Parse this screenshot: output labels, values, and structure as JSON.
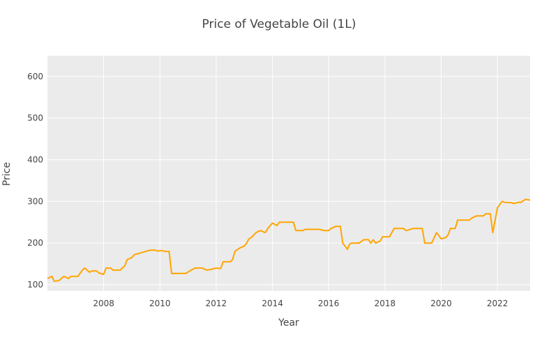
{
  "chart_data": {
    "type": "line",
    "title": "Price of Vegetable Oil (1L)",
    "xlabel": "Year",
    "ylabel": "Price",
    "xlim": [
      "2006-01-01",
      "2023-03-01"
    ],
    "ylim": [
      85,
      650
    ],
    "grid": true,
    "line_color": "#ffa500",
    "plot_bg": "#ebebeb",
    "xticks": [
      "2008",
      "2010",
      "2012",
      "2014",
      "2016",
      "2018",
      "2020",
      "2022"
    ],
    "yticks": [
      100,
      200,
      300,
      400,
      500,
      600
    ],
    "series": [
      {
        "points": [
          [
            "2006-01-01",
            115
          ],
          [
            "2006-03-01",
            120
          ],
          [
            "2006-04-01",
            108
          ],
          [
            "2006-06-01",
            110
          ],
          [
            "2006-08-01",
            120
          ],
          [
            "2006-10-01",
            115
          ],
          [
            "2006-11-01",
            120
          ],
          [
            "2007-02-01",
            120
          ],
          [
            "2007-04-01",
            135
          ],
          [
            "2007-05-01",
            140
          ],
          [
            "2007-07-01",
            130
          ],
          [
            "2007-08-01",
            133
          ],
          [
            "2007-10-01",
            133
          ],
          [
            "2007-11-01",
            128
          ],
          [
            "2008-01-01",
            125
          ],
          [
            "2008-02-01",
            140
          ],
          [
            "2008-04-01",
            140
          ],
          [
            "2008-05-01",
            135
          ],
          [
            "2008-08-01",
            135
          ],
          [
            "2008-10-01",
            145
          ],
          [
            "2008-11-01",
            160
          ],
          [
            "2009-01-01",
            165
          ],
          [
            "2009-02-01",
            172
          ],
          [
            "2009-04-01",
            175
          ],
          [
            "2009-07-01",
            180
          ],
          [
            "2009-09-01",
            183
          ],
          [
            "2009-11-01",
            183
          ],
          [
            "2009-12-01",
            181
          ],
          [
            "2010-02-01",
            182
          ],
          [
            "2010-03-01",
            180
          ],
          [
            "2010-05-01",
            180
          ],
          [
            "2010-06-01",
            127
          ],
          [
            "2010-09-01",
            127
          ],
          [
            "2010-12-01",
            127
          ],
          [
            "2011-02-01",
            134
          ],
          [
            "2011-04-01",
            140
          ],
          [
            "2011-07-01",
            140
          ],
          [
            "2011-09-01",
            135
          ],
          [
            "2011-11-01",
            137
          ],
          [
            "2012-01-01",
            140
          ],
          [
            "2012-03-01",
            139
          ],
          [
            "2012-04-01",
            155
          ],
          [
            "2012-07-01",
            155
          ],
          [
            "2012-08-01",
            160
          ],
          [
            "2012-09-01",
            180
          ],
          [
            "2012-11-01",
            188
          ],
          [
            "2013-01-01",
            193
          ],
          [
            "2013-02-01",
            200
          ],
          [
            "2013-03-01",
            210
          ],
          [
            "2013-04-01",
            213
          ],
          [
            "2013-06-01",
            225
          ],
          [
            "2013-07-01",
            228
          ],
          [
            "2013-08-01",
            230
          ],
          [
            "2013-10-01",
            225
          ],
          [
            "2013-11-01",
            235
          ],
          [
            "2014-01-01",
            248
          ],
          [
            "2014-03-01",
            242
          ],
          [
            "2014-04-01",
            250
          ],
          [
            "2014-06-01",
            250
          ],
          [
            "2014-10-01",
            250
          ],
          [
            "2014-11-01",
            230
          ],
          [
            "2015-02-01",
            230
          ],
          [
            "2015-03-01",
            233
          ],
          [
            "2015-09-01",
            233
          ],
          [
            "2015-11-01",
            230
          ],
          [
            "2016-01-01",
            230
          ],
          [
            "2016-02-01",
            235
          ],
          [
            "2016-04-01",
            240
          ],
          [
            "2016-06-01",
            240
          ],
          [
            "2016-07-01",
            200
          ],
          [
            "2016-09-01",
            185
          ],
          [
            "2016-10-01",
            198
          ],
          [
            "2016-11-01",
            200
          ],
          [
            "2017-02-01",
            200
          ],
          [
            "2017-04-01",
            208
          ],
          [
            "2017-06-01",
            208
          ],
          [
            "2017-07-01",
            200
          ],
          [
            "2017-08-01",
            208
          ],
          [
            "2017-09-01",
            200
          ],
          [
            "2017-11-01",
            205
          ],
          [
            "2017-12-01",
            215
          ],
          [
            "2018-03-01",
            215
          ],
          [
            "2018-05-01",
            235
          ],
          [
            "2018-08-01",
            235
          ],
          [
            "2018-09-01",
            235
          ],
          [
            "2018-10-01",
            230
          ],
          [
            "2019-01-01",
            235
          ],
          [
            "2019-05-01",
            235
          ],
          [
            "2019-06-01",
            200
          ],
          [
            "2019-08-01",
            200
          ],
          [
            "2019-09-01",
            200
          ],
          [
            "2019-11-01",
            225
          ],
          [
            "2020-01-01",
            210
          ],
          [
            "2020-03-01",
            213
          ],
          [
            "2020-04-01",
            220
          ],
          [
            "2020-05-01",
            235
          ],
          [
            "2020-07-01",
            235
          ],
          [
            "2020-08-01",
            255
          ],
          [
            "2020-11-01",
            255
          ],
          [
            "2021-01-01",
            255
          ],
          [
            "2021-02-01",
            260
          ],
          [
            "2021-04-01",
            265
          ],
          [
            "2021-07-01",
            265
          ],
          [
            "2021-08-01",
            270
          ],
          [
            "2021-10-01",
            270
          ],
          [
            "2021-11-01",
            225
          ],
          [
            "2022-01-01",
            285
          ],
          [
            "2022-03-01",
            300
          ],
          [
            "2022-04-01",
            298
          ],
          [
            "2022-07-01",
            297
          ],
          [
            "2022-08-01",
            295
          ],
          [
            "2022-10-01",
            298
          ],
          [
            "2022-11-01",
            298
          ],
          [
            "2023-01-01",
            305
          ],
          [
            "2023-03-01",
            303
          ]
        ]
      }
    ]
  }
}
